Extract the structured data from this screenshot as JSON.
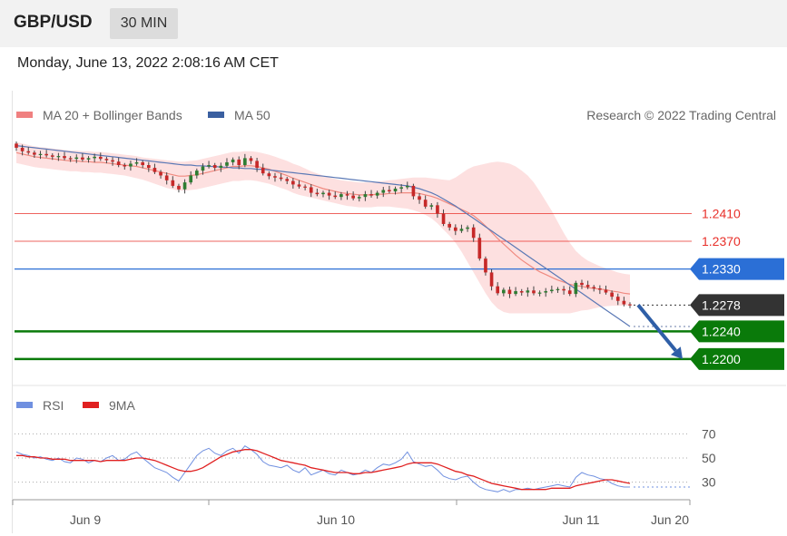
{
  "header": {
    "symbol": "GBP/USD",
    "timeframe": "30 MIN"
  },
  "timestamp": "Monday, June 13, 2022 2:08:16 AM CET",
  "chart_data": [
    {
      "type": "candlestick",
      "title": "GBP/USD",
      "legend": [
        {
          "name": "MA 20 + Bollinger Bands",
          "color": "#f08080"
        },
        {
          "name": "MA 50",
          "color": "#3a5fa0"
        }
      ],
      "credit": "Research © 2022 Trading Central",
      "ylim": [
        1.2175,
        1.2535
      ],
      "x_labels": [
        "Jun 9",
        "Jun 10",
        "Jun 11",
        "Jun 20"
      ],
      "last_price": {
        "value": 1.2278,
        "label": "1.2278",
        "color": "#333333"
      },
      "levels": [
        {
          "value": 1.241,
          "label": "1.2410",
          "kind": "resistance",
          "color": "#e8302a"
        },
        {
          "value": 1.237,
          "label": "1.2370",
          "kind": "resistance",
          "color": "#e8302a"
        },
        {
          "value": 1.233,
          "label": "1.2330",
          "kind": "pivot",
          "color": "#2b6fd6"
        },
        {
          "value": 1.224,
          "label": "1.2240",
          "kind": "support",
          "color": "#0a7a0a"
        },
        {
          "value": 1.22,
          "label": "1.2200",
          "kind": "support",
          "color": "#0a7a0a"
        }
      ],
      "forecast_arrow": {
        "from": 1.2278,
        "to": 1.22,
        "direction": "down",
        "color": "#2f5fa7"
      },
      "series": [
        {
          "name": "Close",
          "values": [
            1.2505,
            1.25,
            1.2498,
            1.2495,
            1.2496,
            1.2494,
            1.2492,
            1.2493,
            1.249,
            1.2489,
            1.2491,
            1.2488,
            1.249,
            1.2492,
            1.2489,
            1.2487,
            1.2485,
            1.248,
            1.2478,
            1.2482,
            1.2484,
            1.248,
            1.2476,
            1.247,
            1.2465,
            1.2458,
            1.245,
            1.2445,
            1.2455,
            1.2465,
            1.2472,
            1.2478,
            1.248,
            1.2476,
            1.2479,
            1.2484,
            1.2488,
            1.248,
            1.249,
            1.2486,
            1.2476,
            1.2468,
            1.2464,
            1.2462,
            1.246,
            1.2457,
            1.2452,
            1.2449,
            1.2448,
            1.244,
            1.2438,
            1.244,
            1.2436,
            1.2434,
            1.2438,
            1.2436,
            1.2432,
            1.2434,
            1.2438,
            1.2436,
            1.244,
            1.2444,
            1.2442,
            1.2446,
            1.2448,
            1.245,
            1.2435,
            1.243,
            1.242,
            1.2422,
            1.241,
            1.2395,
            1.239,
            1.2385,
            1.2388,
            1.239,
            1.2375,
            1.2345,
            1.2325,
            1.2305,
            1.2295,
            1.23,
            1.2294,
            1.2298,
            1.2296,
            1.2299,
            1.2295,
            1.2296,
            1.2298,
            1.23,
            1.2301,
            1.2299,
            1.2294,
            1.231,
            1.2307,
            1.2304,
            1.2302,
            1.23,
            1.2296,
            1.229,
            1.2284,
            1.2279,
            1.2278
          ]
        },
        {
          "name": "MA 20",
          "values": [
            1.2498,
            1.2496,
            1.2494,
            1.2492,
            1.2491,
            1.249,
            1.2489,
            1.2488,
            1.2487,
            1.2486,
            1.2486,
            1.2485,
            1.2485,
            1.2484,
            1.2484,
            1.2483,
            1.2482,
            1.2481,
            1.248,
            1.2479,
            1.2478,
            1.2476,
            1.2474,
            1.2472,
            1.247,
            1.2468,
            1.2466,
            1.2464,
            1.2464,
            1.2465,
            1.2466,
            1.2468,
            1.247,
            1.2472,
            1.2474,
            1.2476,
            1.2478,
            1.2478,
            1.2479,
            1.2479,
            1.2478,
            1.2476,
            1.2474,
            1.2471,
            1.2468,
            1.2465,
            1.2461,
            1.2458,
            1.2455,
            1.2452,
            1.2449,
            1.2446,
            1.2444,
            1.2442,
            1.244,
            1.2439,
            1.2438,
            1.2437,
            1.2437,
            1.2437,
            1.2438,
            1.2438,
            1.2439,
            1.2439,
            1.244,
            1.244,
            1.244,
            1.2439,
            1.2437,
            1.2435,
            1.2432,
            1.2428,
            1.2424,
            1.242,
            1.2416,
            1.2412,
            1.2407,
            1.24,
            1.2392,
            1.2383,
            1.2374,
            1.2366,
            1.2358,
            1.235,
            1.2343,
            1.2337,
            1.2331,
            1.2326,
            1.2322,
            1.2318,
            1.2314,
            1.2311,
            1.2308,
            1.2306,
            1.2305,
            1.2303,
            1.2302,
            1.2301,
            1.23,
            1.2298,
            1.2297,
            1.2295,
            1.2294
          ]
        },
        {
          "name": "Bollinger Upper",
          "values": [
            1.2513,
            1.2511,
            1.2509,
            1.2507,
            1.2506,
            1.2505,
            1.2504,
            1.2503,
            1.2502,
            1.2501,
            1.2501,
            1.25,
            1.25,
            1.2499,
            1.2499,
            1.2498,
            1.2497,
            1.2496,
            1.2495,
            1.2494,
            1.2493,
            1.2491,
            1.249,
            1.2489,
            1.2488,
            1.2487,
            1.2486,
            1.2485,
            1.2485,
            1.2486,
            1.2487,
            1.2489,
            1.2491,
            1.2493,
            1.2495,
            1.2497,
            1.2499,
            1.2499,
            1.25,
            1.25,
            1.2499,
            1.2497,
            1.2495,
            1.2492,
            1.2489,
            1.2486,
            1.2482,
            1.2479,
            1.2475,
            1.2471,
            1.2468,
            1.2465,
            1.2462,
            1.246,
            1.2458,
            1.2457,
            1.2456,
            1.2455,
            1.2455,
            1.2455,
            1.2456,
            1.2457,
            1.2458,
            1.2459,
            1.246,
            1.2461,
            1.2462,
            1.2462,
            1.2462,
            1.2461,
            1.246,
            1.2459,
            1.2458,
            1.2462,
            1.2468,
            1.2474,
            1.2478,
            1.248,
            1.2482,
            1.2484,
            1.2485,
            1.2484,
            1.2482,
            1.2478,
            1.2472,
            1.2465,
            1.2455,
            1.2442,
            1.2428,
            1.2414,
            1.2398,
            1.2382,
            1.2368,
            1.2356,
            1.2348,
            1.2342,
            1.2338,
            1.2334,
            1.2331,
            1.2328,
            1.2325,
            1.2323,
            1.2322
          ]
        },
        {
          "name": "Bollinger Lower",
          "values": [
            1.2483,
            1.2481,
            1.2479,
            1.2477,
            1.2476,
            1.2475,
            1.2474,
            1.2473,
            1.2472,
            1.2471,
            1.2471,
            1.247,
            1.247,
            1.2469,
            1.2469,
            1.2468,
            1.2467,
            1.2466,
            1.2465,
            1.2463,
            1.2461,
            1.2459,
            1.2456,
            1.2453,
            1.245,
            1.2447,
            1.2445,
            1.2443,
            1.2443,
            1.2444,
            1.2445,
            1.2447,
            1.2449,
            1.2451,
            1.2453,
            1.2455,
            1.2457,
            1.2457,
            1.2458,
            1.2458,
            1.2457,
            1.2455,
            1.2453,
            1.245,
            1.2447,
            1.2444,
            1.244,
            1.2437,
            1.2435,
            1.2433,
            1.2431,
            1.2429,
            1.2427,
            1.2425,
            1.2423,
            1.2421,
            1.242,
            1.2419,
            1.2419,
            1.2419,
            1.242,
            1.242,
            1.242,
            1.2419,
            1.2418,
            1.2417,
            1.2415,
            1.2412,
            1.2408,
            1.2403,
            1.2396,
            1.2387,
            1.2378,
            1.2368,
            1.2355,
            1.234,
            1.2325,
            1.231,
            1.2295,
            1.2282,
            1.2273,
            1.2268,
            1.2266,
            1.2266,
            1.2266,
            1.2266,
            1.2266,
            1.2266,
            1.2266,
            1.2266,
            1.2266,
            1.2266,
            1.2266,
            1.2268,
            1.227,
            1.2271,
            1.2273,
            1.2275,
            1.2276,
            1.2277,
            1.2277,
            1.2277,
            1.2277
          ]
        },
        {
          "name": "MA 50",
          "values": [
            1.2508,
            1.2507,
            1.2506,
            1.2505,
            1.2504,
            1.2503,
            1.2502,
            1.2501,
            1.25,
            1.2499,
            1.2498,
            1.2497,
            1.2496,
            1.2495,
            1.2494,
            1.2493,
            1.2492,
            1.2491,
            1.249,
            1.2489,
            1.2488,
            1.2487,
            1.2486,
            1.2485,
            1.2484,
            1.2483,
            1.2482,
            1.2481,
            1.248,
            1.248,
            1.2479,
            1.2479,
            1.2478,
            1.2478,
            1.2477,
            1.2477,
            1.2476,
            1.2476,
            1.2475,
            1.2475,
            1.2474,
            1.2474,
            1.2473,
            1.2472,
            1.2471,
            1.247,
            1.2469,
            1.2468,
            1.2467,
            1.2466,
            1.2465,
            1.2464,
            1.2463,
            1.2462,
            1.2461,
            1.246,
            1.2459,
            1.2458,
            1.2457,
            1.2456,
            1.2455,
            1.2454,
            1.2453,
            1.2452,
            1.2451,
            1.245,
            1.2448,
            1.2446,
            1.2443,
            1.244,
            1.2436,
            1.2431,
            1.2426,
            1.2421,
            1.2415,
            1.2409,
            1.2403,
            1.2397,
            1.2391,
            1.2385,
            1.2379,
            1.2373,
            1.2367,
            1.2361,
            1.2355,
            1.2349,
            1.2343,
            1.2337,
            1.2331,
            1.2325,
            1.2319,
            1.2313,
            1.2307,
            1.2301,
            1.2295,
            1.2289,
            1.2283,
            1.2277,
            1.2271,
            1.2265,
            1.2259,
            1.2253,
            1.2247
          ]
        }
      ]
    },
    {
      "type": "line",
      "title": "RSI",
      "legend": [
        {
          "name": "RSI",
          "color": "#7090e0"
        },
        {
          "name": "9MA",
          "color": "#e02020"
        }
      ],
      "ylim": [
        20,
        80
      ],
      "yticks": [
        70,
        50,
        30
      ],
      "series": [
        {
          "name": "RSI",
          "values": [
            55,
            53,
            52,
            50,
            51,
            49,
            48,
            50,
            47,
            46,
            50,
            49,
            46,
            48,
            47,
            50,
            52,
            48,
            49,
            53,
            55,
            50,
            46,
            42,
            40,
            38,
            34,
            31,
            38,
            45,
            52,
            56,
            58,
            54,
            52,
            56,
            58,
            54,
            60,
            57,
            53,
            47,
            44,
            43,
            42,
            44,
            40,
            38,
            42,
            36,
            38,
            40,
            37,
            36,
            40,
            38,
            36,
            37,
            40,
            38,
            42,
            45,
            44,
            46,
            49,
            55,
            47,
            45,
            43,
            44,
            40,
            35,
            33,
            32,
            34,
            35,
            30,
            26,
            24,
            23,
            22,
            24,
            22,
            24,
            24,
            25,
            24,
            25,
            26,
            27,
            28,
            27,
            26,
            34,
            38,
            36,
            35,
            33,
            32,
            29,
            27,
            26,
            26
          ]
        },
        {
          "name": "9MA",
          "values": [
            52,
            52,
            51,
            51,
            50,
            50,
            49,
            49,
            49,
            48,
            48,
            48,
            48,
            48,
            47,
            48,
            48,
            48,
            48,
            49,
            50,
            50,
            49,
            48,
            46,
            44,
            42,
            40,
            39,
            39,
            40,
            42,
            45,
            48,
            51,
            53,
            55,
            56,
            57,
            57,
            56,
            54,
            52,
            50,
            48,
            47,
            46,
            45,
            44,
            42,
            41,
            40,
            39,
            38,
            38,
            38,
            37,
            37,
            38,
            38,
            39,
            40,
            41,
            42,
            43,
            45,
            46,
            46,
            46,
            46,
            45,
            43,
            41,
            39,
            38,
            36,
            35,
            33,
            31,
            29,
            28,
            27,
            26,
            25,
            24,
            24,
            24,
            24,
            24,
            25,
            25,
            25,
            25,
            27,
            28,
            29,
            30,
            31,
            32,
            32,
            31,
            30,
            29
          ]
        }
      ]
    }
  ]
}
